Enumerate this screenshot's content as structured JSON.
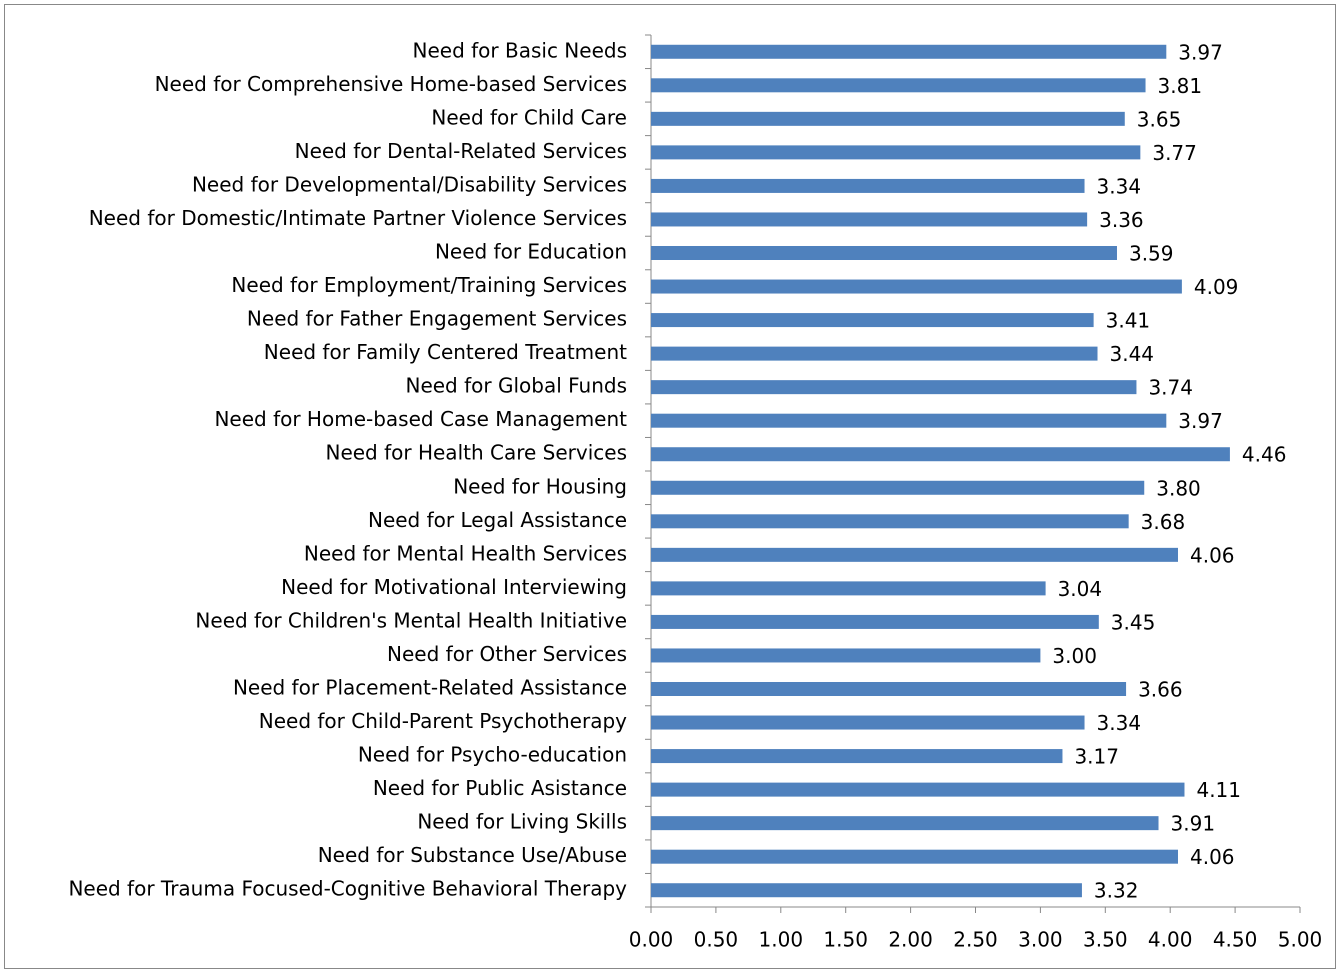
{
  "chart_data": {
    "type": "bar",
    "orientation": "horizontal",
    "color": "#4f81bd",
    "categories": [
      "Need for Basic Needs",
      "Need for Comprehensive Home-based Services",
      "Need for Child Care",
      "Need for Dental-Related Services",
      "Need for Developmental/Disability Services",
      "Need for Domestic/Intimate Partner Violence Services",
      "Need for Education",
      "Need for Employment/Training Services",
      "Need for Father Engagement Services",
      "Need for Family Centered Treatment",
      "Need for Global Funds",
      "Need for Home-based Case Management",
      "Need for Health Care Services",
      "Need for Housing",
      "Need for Legal Assistance",
      "Need for Mental Health Services",
      "Need for Motivational Interviewing",
      "Need for Children's Mental Health Initiative",
      "Need for Other Services",
      "Need for Placement-Related Assistance",
      "Need for Child-Parent Psychotherapy",
      "Need for Psycho-education",
      "Need for Public Asistance",
      "Need for Living Skills",
      "Need for Substance Use/Abuse",
      "Need for Trauma Focused-Cognitive Behavioral Therapy"
    ],
    "values": [
      3.97,
      3.81,
      3.65,
      3.77,
      3.34,
      3.36,
      3.59,
      4.09,
      3.41,
      3.44,
      3.74,
      3.97,
      4.46,
      3.8,
      3.68,
      4.06,
      3.04,
      3.45,
      3.0,
      3.66,
      3.34,
      3.17,
      4.11,
      3.91,
      4.06,
      3.32
    ],
    "value_labels": [
      "3.97",
      "3.81",
      "3.65",
      "3.77",
      "3.34",
      "3.36",
      "3.59",
      "4.09",
      "3.41",
      "3.44",
      "3.74",
      "3.97",
      "4.46",
      "3.80",
      "3.68",
      "4.06",
      "3.04",
      "3.45",
      "3.00",
      "3.66",
      "3.34",
      "3.17",
      "4.11",
      "3.91",
      "4.06",
      "3.32"
    ],
    "xlim": [
      0,
      5
    ],
    "xticks": [
      {
        "value": 0,
        "label": "0.00"
      },
      {
        "value": 0.5,
        "label": "0.50"
      },
      {
        "value": 1,
        "label": "1.00"
      },
      {
        "value": 1.5,
        "label": "1.50"
      },
      {
        "value": 2,
        "label": "2.00"
      },
      {
        "value": 2.5,
        "label": "2.50"
      },
      {
        "value": 3,
        "label": "3.00"
      },
      {
        "value": 3.5,
        "label": "3.50"
      },
      {
        "value": 4,
        "label": "4.00"
      },
      {
        "value": 4.5,
        "label": "4.50"
      },
      {
        "value": 5,
        "label": "5.00"
      }
    ],
    "grid": false
  }
}
